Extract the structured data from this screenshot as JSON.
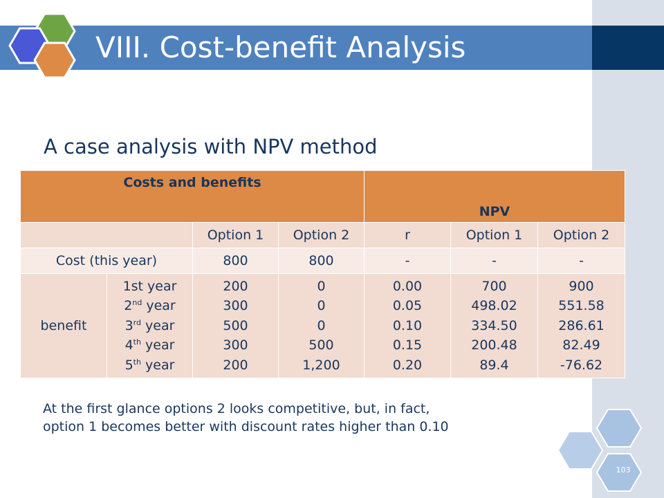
{
  "slide": {
    "title": "VIII. Cost-benefit Analysis",
    "subtitle": "A case analysis with NPV method",
    "page_number": "103",
    "colors": {
      "title_bar": "#4f81bd",
      "header_orange": "#dd8a47",
      "text_navy": "#17365d"
    }
  },
  "table": {
    "header": {
      "costs_benefits": "Costs and benefits",
      "npv": "NPV"
    },
    "subheader": {
      "blank": "",
      "option1": "Option 1",
      "option2": "Option 2",
      "r": "r",
      "npv_option1": "Option 1",
      "npv_option2": "Option 2"
    },
    "cost_row": {
      "label": "Cost (this year)",
      "option1": "800",
      "option2": "800",
      "r": "-",
      "npv_option1": "-",
      "npv_option2": "-"
    },
    "benefit": {
      "label": "benefit",
      "years": [
        {
          "num": "1st",
          "sup": "",
          "word": "year"
        },
        {
          "num": "2",
          "sup": "nd",
          "word": "year"
        },
        {
          "num": "3",
          "sup": "rd",
          "word": "year"
        },
        {
          "num": "4",
          "sup": "th",
          "word": "year"
        },
        {
          "num": "5",
          "sup": "th",
          "word": "year"
        }
      ],
      "option1": [
        "200",
        "300",
        "500",
        "300",
        "200"
      ],
      "option2": [
        "0",
        "0",
        "0",
        "500",
        "1,200"
      ],
      "r": [
        "0.00",
        "0.05",
        "0.10",
        "0.15",
        "0.20"
      ],
      "npv_option1": [
        "700",
        "498.02",
        "334.50",
        "200.48",
        "89.4"
      ],
      "npv_option2": [
        "900",
        "551.58",
        "286.61",
        "82.49",
        "-76.62"
      ]
    }
  },
  "note": {
    "line1": "At the first glance options 2 looks competitive, but, in fact,",
    "line2": "option 1 becomes better with discount rates higher than 0.10"
  }
}
